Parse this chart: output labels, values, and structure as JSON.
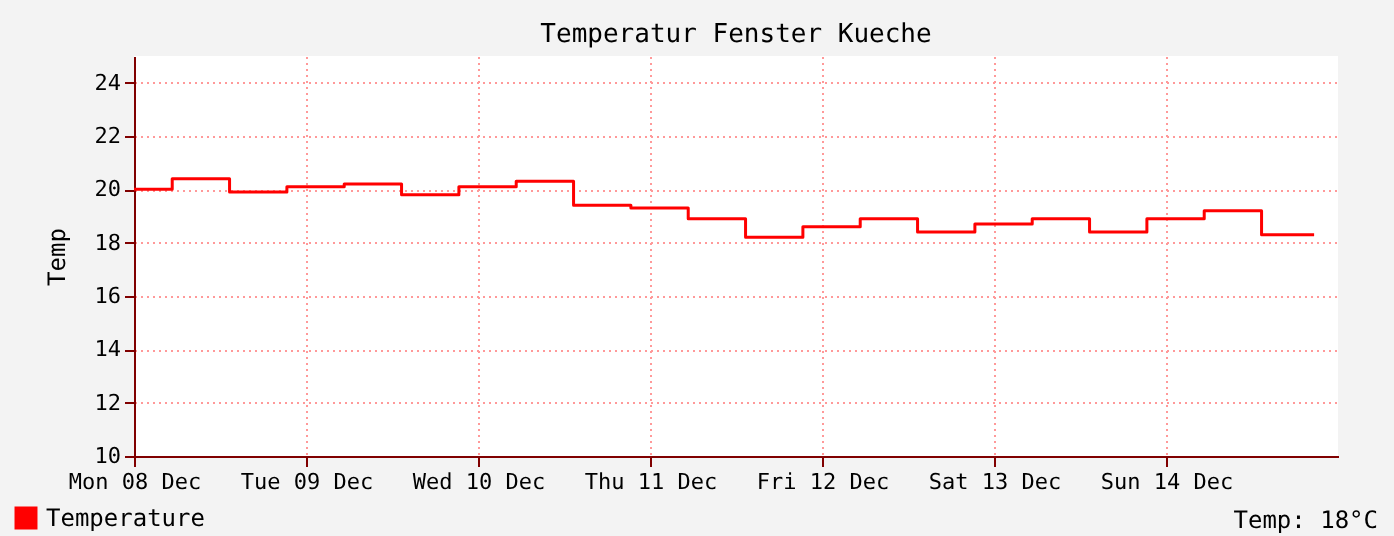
{
  "chart_data": {
    "type": "step",
    "title": "Temperatur Fenster Kueche",
    "ylabel": "Temp",
    "x": [
      "--12-08T00:00",
      "--12-08T05:20",
      "--12-08T13:20",
      "--12-08T21:20",
      "--12-09T05:20",
      "--12-09T13:20",
      "--12-09T21:20",
      "--12-10T05:20",
      "--12-10T13:20",
      "--12-10T21:20",
      "--12-11T05:20",
      "--12-11T13:20",
      "--12-11T21:20",
      "--12-12T05:20",
      "--12-12T13:20",
      "--12-12T21:20",
      "--12-13T05:20",
      "--12-13T13:20",
      "--12-13T21:20",
      "--12-14T05:20",
      "--12-14T13:20",
      "--12-14T20:40"
    ],
    "series": [
      {
        "name": "Temperature",
        "color": "#ff0000",
        "values": [
          20.0,
          20.4,
          19.9,
          20.1,
          20.2,
          19.8,
          20.1,
          20.3,
          19.4,
          19.3,
          18.9,
          18.2,
          18.6,
          18.9,
          18.4,
          18.7,
          18.9,
          18.4,
          18.9,
          19.2,
          18.3,
          18.3
        ]
      }
    ],
    "xlim": [
      "--12-08T00:00",
      "--12-15T00:00"
    ],
    "xticks": [
      {
        "value": "--12-08T00:00",
        "label": "Mon 08 Dec"
      },
      {
        "value": "--12-09T00:00",
        "label": "Tue 09 Dec"
      },
      {
        "value": "--12-10T00:00",
        "label": "Wed 10 Dec"
      },
      {
        "value": "--12-11T00:00",
        "label": "Thu 11 Dec"
      },
      {
        "value": "--12-12T00:00",
        "label": "Fri 12 Dec"
      },
      {
        "value": "--12-13T00:00",
        "label": "Sat 13 Dec"
      },
      {
        "value": "--12-14T00:00",
        "label": "Sun 14 Dec"
      }
    ],
    "ylim": [
      10,
      25
    ],
    "yticks": [
      10,
      12,
      14,
      16,
      18,
      20,
      22,
      24
    ],
    "grid": true,
    "legend": "bottom left",
    "annotations": [
      "Temp: 18°C"
    ]
  }
}
